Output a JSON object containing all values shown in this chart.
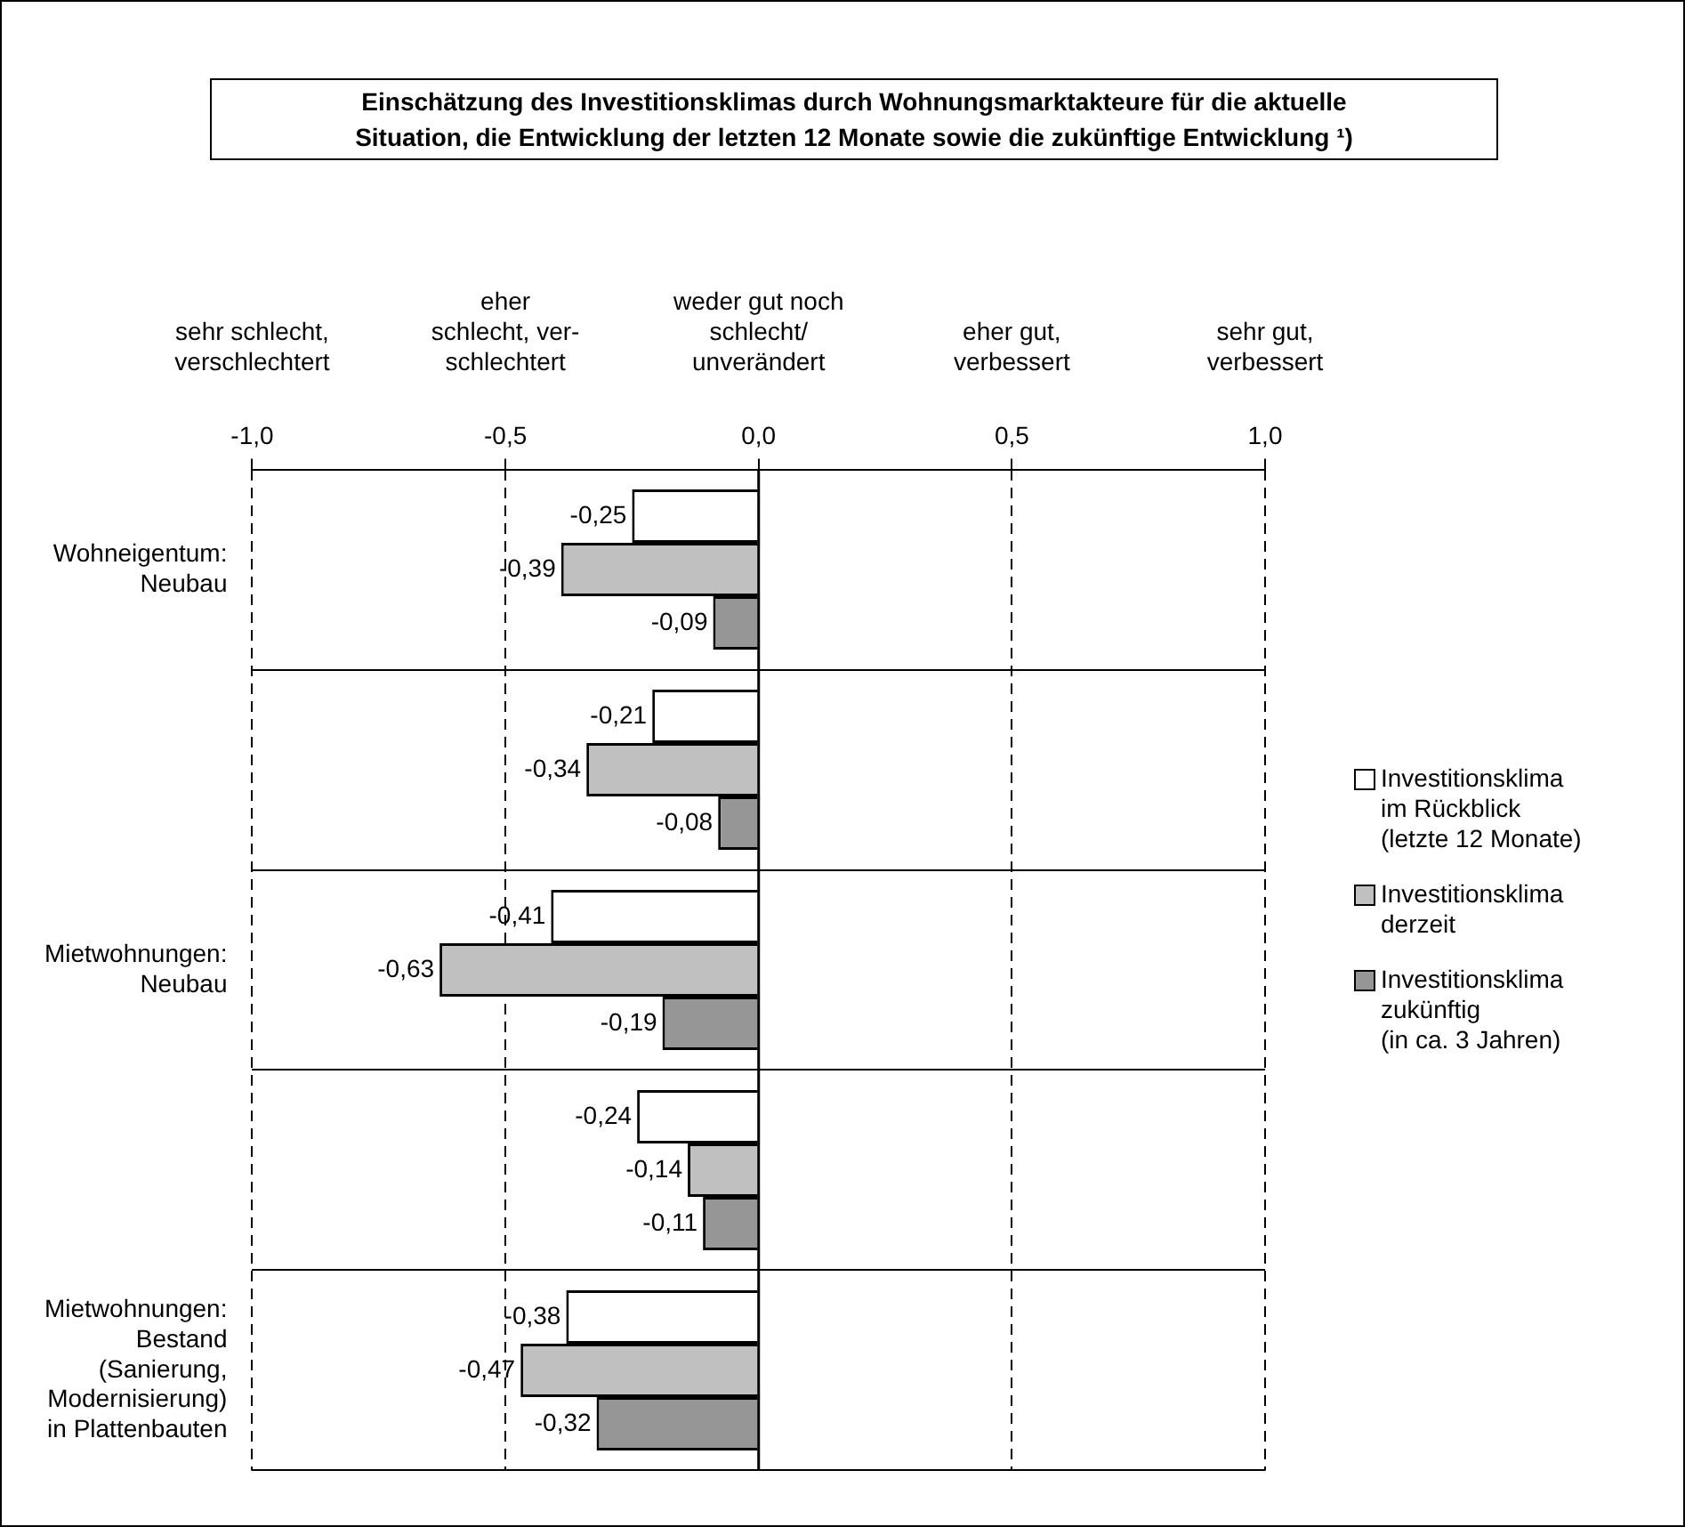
{
  "chart_data": {
    "type": "bar",
    "orientation": "horizontal",
    "title": "Einschätzung des Investitionsklimas durch Wohnungsmarktakteure für die aktuelle\nSituation, die Entwicklung der letzten 12 Monate sowie die zukünftige Entwicklung  ¹)",
    "categories": [
      "Wohneigentum:\nNeubau",
      null,
      "Mietwohnungen:\nNeubau",
      null,
      "Mietwohnungen:\nBestand\n(Sanierung,\nModernisierung)\nin Plattenbauten"
    ],
    "series": [
      {
        "name": "Investitionsklima\nim Rückblick\n(letzte 12 Monate)",
        "color": "#ffffff",
        "values": [
          -0.25,
          -0.21,
          -0.41,
          -0.24,
          -0.38
        ],
        "value_labels": [
          "-0,25",
          "-0,21",
          "-0,41",
          "-0,24",
          "-0,38"
        ]
      },
      {
        "name": "Investitionsklima\nderzeit",
        "color": "#c0c0c0",
        "values": [
          -0.39,
          -0.34,
          -0.63,
          -0.14,
          -0.47
        ],
        "value_labels": [
          "-0,39",
          "-0,34",
          "-0,63",
          "-0,14",
          "-0,47"
        ]
      },
      {
        "name": "Investitionsklima\nzukünftig\n(in ca. 3 Jahren)",
        "color": "#969696",
        "values": [
          -0.09,
          -0.08,
          -0.19,
          -0.11,
          -0.32
        ],
        "value_labels": [
          "-0,09",
          "-0,08",
          "-0,19",
          "-0,11",
          "-0,32"
        ]
      }
    ],
    "xlim": [
      -1,
      1
    ],
    "xticks": [
      {
        "value": -1,
        "label": "-1,0"
      },
      {
        "value": -0.5,
        "label": "-0,5"
      },
      {
        "value": 0,
        "label": "0,0"
      },
      {
        "value": 0.5,
        "label": "0,5"
      },
      {
        "value": 1,
        "label": "1,0"
      }
    ],
    "annotations": [
      "sehr schlecht,\nverschlechtert",
      "eher\nschlecht, ver-\nschlechtert",
      "weder gut noch\nschlecht/\nunverändert",
      "eher gut,\nverbessert",
      "sehr gut,\nverbessert"
    ],
    "grid": true,
    "legend": "right"
  }
}
